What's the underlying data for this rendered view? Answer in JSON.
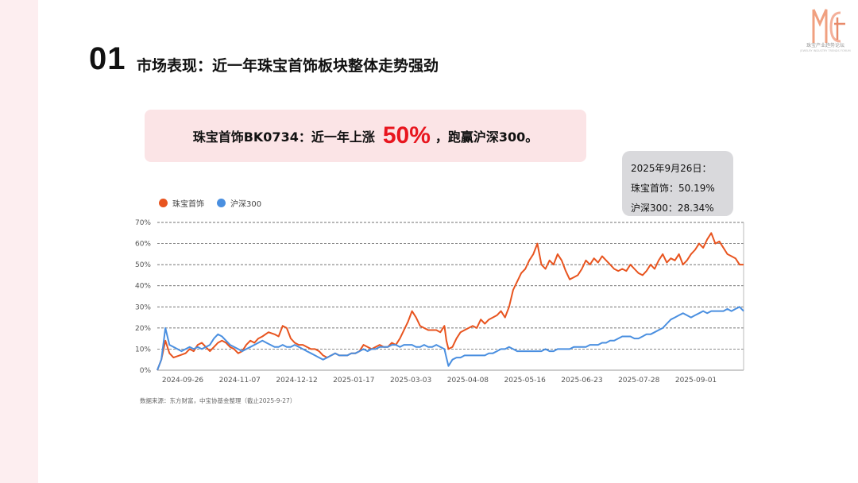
{
  "slide": {
    "number": "01",
    "title": "市场表现：近一年珠宝首饰板块整体走势强劲"
  },
  "logo": {
    "text": "珠宝产业趋势论坛",
    "subtext": "JEWELRY INDUSTRY TRENDS FORUM"
  },
  "banner": {
    "prefix": "珠宝首饰BK0734：近一年上涨",
    "highlight": "50%",
    "suffix": "，跑赢沪深300。"
  },
  "tooltip": {
    "date": "2025年9月26日：",
    "line1": "珠宝首饰：50.19%",
    "line2": "沪深300：28.34%"
  },
  "source": "数据来源：东方财富，中宝协基金整理（截止2025-9-27）",
  "colors": {
    "jewelry": "#e8541f",
    "csi300": "#4a8fe0"
  },
  "chart_data": {
    "type": "line",
    "ylim": [
      0,
      70
    ],
    "yticks": [
      "0%",
      "10%",
      "20%",
      "30%",
      "40%",
      "50%",
      "60%",
      "70%"
    ],
    "xticks": [
      "2024-09-26",
      "2024-11-07",
      "2024-12-12",
      "2025-01-17",
      "2025-03-03",
      "2025-04-08",
      "2025-05-16",
      "2025-06-23",
      "2025-07-28",
      "2025-09-01"
    ],
    "grid": true,
    "legend_position": "top-left",
    "series": [
      {
        "name": "珠宝首饰",
        "points": [
          [
            0,
            0
          ],
          [
            2,
            5
          ],
          [
            4,
            14
          ],
          [
            6,
            8
          ],
          [
            8,
            6
          ],
          [
            11,
            7
          ],
          [
            14,
            8
          ],
          [
            16,
            10
          ],
          [
            18,
            9
          ],
          [
            20,
            12
          ],
          [
            22,
            13
          ],
          [
            24,
            11
          ],
          [
            26,
            9
          ],
          [
            28,
            11
          ],
          [
            30,
            13
          ],
          [
            32,
            14
          ],
          [
            34,
            13
          ],
          [
            36,
            11
          ],
          [
            38,
            10
          ],
          [
            40,
            8
          ],
          [
            42,
            9
          ],
          [
            44,
            12
          ],
          [
            46,
            14
          ],
          [
            48,
            13
          ],
          [
            50,
            15
          ],
          [
            52,
            16
          ],
          [
            55,
            18
          ],
          [
            58,
            17
          ],
          [
            60,
            16
          ],
          [
            62,
            21
          ],
          [
            64,
            20
          ],
          [
            66,
            15
          ],
          [
            68,
            13
          ],
          [
            70,
            12
          ],
          [
            72,
            12
          ],
          [
            74,
            11
          ],
          [
            76,
            10
          ],
          [
            78,
            10
          ],
          [
            80,
            9
          ],
          [
            82,
            7
          ],
          [
            84,
            6
          ],
          [
            86,
            7
          ],
          [
            88,
            8
          ],
          [
            90,
            7
          ],
          [
            92,
            7
          ],
          [
            94,
            7
          ],
          [
            96,
            8
          ],
          [
            98,
            8
          ],
          [
            100,
            9
          ],
          [
            102,
            12
          ],
          [
            104,
            11
          ],
          [
            106,
            10
          ],
          [
            108,
            11
          ],
          [
            110,
            12
          ],
          [
            112,
            11
          ],
          [
            114,
            11
          ],
          [
            116,
            13
          ],
          [
            118,
            12
          ],
          [
            120,
            15
          ],
          [
            122,
            19
          ],
          [
            124,
            23
          ],
          [
            126,
            28
          ],
          [
            128,
            25
          ],
          [
            130,
            21
          ],
          [
            132,
            20
          ],
          [
            134,
            19
          ],
          [
            136,
            19
          ],
          [
            138,
            19
          ],
          [
            140,
            18
          ],
          [
            142,
            21
          ],
          [
            143,
            14
          ],
          [
            144,
            10
          ],
          [
            146,
            11
          ],
          [
            148,
            15
          ],
          [
            150,
            18
          ],
          [
            152,
            19
          ],
          [
            154,
            20
          ],
          [
            156,
            21
          ],
          [
            158,
            20
          ],
          [
            160,
            24
          ],
          [
            162,
            22
          ],
          [
            164,
            24
          ],
          [
            166,
            25
          ],
          [
            168,
            26
          ],
          [
            170,
            28
          ],
          [
            172,
            25
          ],
          [
            174,
            30
          ],
          [
            176,
            38
          ],
          [
            178,
            42
          ],
          [
            180,
            46
          ],
          [
            182,
            48
          ],
          [
            184,
            52
          ],
          [
            186,
            55
          ],
          [
            188,
            60
          ],
          [
            190,
            50
          ],
          [
            192,
            48
          ],
          [
            194,
            52
          ],
          [
            196,
            50
          ],
          [
            198,
            55
          ],
          [
            200,
            52
          ],
          [
            202,
            47
          ],
          [
            204,
            43
          ],
          [
            206,
            44
          ],
          [
            208,
            45
          ],
          [
            210,
            48
          ],
          [
            212,
            52
          ],
          [
            214,
            50
          ],
          [
            216,
            53
          ],
          [
            218,
            51
          ],
          [
            220,
            54
          ],
          [
            222,
            52
          ],
          [
            224,
            50
          ],
          [
            226,
            48
          ],
          [
            228,
            47
          ],
          [
            230,
            48
          ],
          [
            232,
            47
          ],
          [
            234,
            50
          ],
          [
            236,
            48
          ],
          [
            238,
            46
          ],
          [
            240,
            45
          ],
          [
            242,
            47
          ],
          [
            244,
            50
          ],
          [
            246,
            48
          ],
          [
            248,
            52
          ],
          [
            250,
            55
          ],
          [
            252,
            51
          ],
          [
            254,
            53
          ],
          [
            256,
            52
          ],
          [
            258,
            55
          ],
          [
            260,
            50
          ],
          [
            262,
            52
          ],
          [
            264,
            55
          ],
          [
            266,
            57
          ],
          [
            268,
            60
          ],
          [
            270,
            58
          ],
          [
            272,
            62
          ],
          [
            274,
            65
          ],
          [
            276,
            60
          ],
          [
            278,
            61
          ],
          [
            280,
            58
          ],
          [
            282,
            55
          ],
          [
            284,
            54
          ],
          [
            286,
            53
          ],
          [
            288,
            50
          ],
          [
            290,
            50
          ]
        ]
      },
      {
        "name": "沪深300",
        "points": [
          [
            0,
            0
          ],
          [
            2,
            5
          ],
          [
            4,
            20
          ],
          [
            6,
            12
          ],
          [
            8,
            11
          ],
          [
            10,
            10
          ],
          [
            12,
            9
          ],
          [
            14,
            10
          ],
          [
            16,
            11
          ],
          [
            18,
            10
          ],
          [
            20,
            11
          ],
          [
            22,
            10
          ],
          [
            24,
            11
          ],
          [
            26,
            12
          ],
          [
            28,
            15
          ],
          [
            30,
            17
          ],
          [
            32,
            16
          ],
          [
            34,
            14
          ],
          [
            36,
            12
          ],
          [
            38,
            11
          ],
          [
            40,
            10
          ],
          [
            42,
            9
          ],
          [
            44,
            10
          ],
          [
            46,
            11
          ],
          [
            48,
            12
          ],
          [
            50,
            13
          ],
          [
            52,
            14
          ],
          [
            54,
            13
          ],
          [
            56,
            12
          ],
          [
            58,
            11
          ],
          [
            60,
            11
          ],
          [
            62,
            12
          ],
          [
            64,
            11
          ],
          [
            66,
            11
          ],
          [
            68,
            12
          ],
          [
            70,
            11
          ],
          [
            72,
            10
          ],
          [
            74,
            9
          ],
          [
            76,
            8
          ],
          [
            78,
            7
          ],
          [
            80,
            6
          ],
          [
            82,
            5
          ],
          [
            84,
            6
          ],
          [
            86,
            7
          ],
          [
            88,
            8
          ],
          [
            90,
            7
          ],
          [
            92,
            7
          ],
          [
            94,
            7
          ],
          [
            96,
            8
          ],
          [
            98,
            8
          ],
          [
            100,
            9
          ],
          [
            102,
            10
          ],
          [
            104,
            9
          ],
          [
            106,
            10
          ],
          [
            108,
            10
          ],
          [
            110,
            11
          ],
          [
            112,
            11
          ],
          [
            114,
            11
          ],
          [
            116,
            12
          ],
          [
            118,
            12
          ],
          [
            120,
            11
          ],
          [
            122,
            12
          ],
          [
            124,
            12
          ],
          [
            126,
            12
          ],
          [
            128,
            11
          ],
          [
            130,
            11
          ],
          [
            132,
            12
          ],
          [
            134,
            11
          ],
          [
            136,
            11
          ],
          [
            138,
            12
          ],
          [
            140,
            11
          ],
          [
            142,
            10
          ],
          [
            143,
            6
          ],
          [
            144,
            2
          ],
          [
            146,
            5
          ],
          [
            148,
            6
          ],
          [
            150,
            6
          ],
          [
            152,
            7
          ],
          [
            154,
            7
          ],
          [
            156,
            7
          ],
          [
            158,
            7
          ],
          [
            160,
            7
          ],
          [
            162,
            7
          ],
          [
            164,
            8
          ],
          [
            166,
            8
          ],
          [
            168,
            9
          ],
          [
            170,
            10
          ],
          [
            172,
            10
          ],
          [
            174,
            11
          ],
          [
            176,
            10
          ],
          [
            178,
            9
          ],
          [
            180,
            9
          ],
          [
            182,
            9
          ],
          [
            184,
            9
          ],
          [
            186,
            9
          ],
          [
            188,
            9
          ],
          [
            190,
            9
          ],
          [
            192,
            10
          ],
          [
            194,
            9
          ],
          [
            196,
            9
          ],
          [
            198,
            10
          ],
          [
            200,
            10
          ],
          [
            202,
            10
          ],
          [
            204,
            10
          ],
          [
            206,
            11
          ],
          [
            208,
            11
          ],
          [
            210,
            11
          ],
          [
            212,
            11
          ],
          [
            214,
            12
          ],
          [
            216,
            12
          ],
          [
            218,
            12
          ],
          [
            220,
            13
          ],
          [
            222,
            13
          ],
          [
            224,
            14
          ],
          [
            226,
            14
          ],
          [
            228,
            15
          ],
          [
            230,
            16
          ],
          [
            232,
            16
          ],
          [
            234,
            16
          ],
          [
            236,
            15
          ],
          [
            238,
            15
          ],
          [
            240,
            16
          ],
          [
            242,
            17
          ],
          [
            244,
            17
          ],
          [
            246,
            18
          ],
          [
            248,
            19
          ],
          [
            250,
            20
          ],
          [
            252,
            22
          ],
          [
            254,
            24
          ],
          [
            256,
            25
          ],
          [
            258,
            26
          ],
          [
            260,
            27
          ],
          [
            262,
            26
          ],
          [
            264,
            25
          ],
          [
            266,
            26
          ],
          [
            268,
            27
          ],
          [
            270,
            28
          ],
          [
            272,
            27
          ],
          [
            274,
            28
          ],
          [
            276,
            28
          ],
          [
            278,
            28
          ],
          [
            280,
            28
          ],
          [
            282,
            29
          ],
          [
            284,
            28
          ],
          [
            286,
            29
          ],
          [
            288,
            30
          ],
          [
            290,
            28
          ]
        ]
      }
    ]
  }
}
